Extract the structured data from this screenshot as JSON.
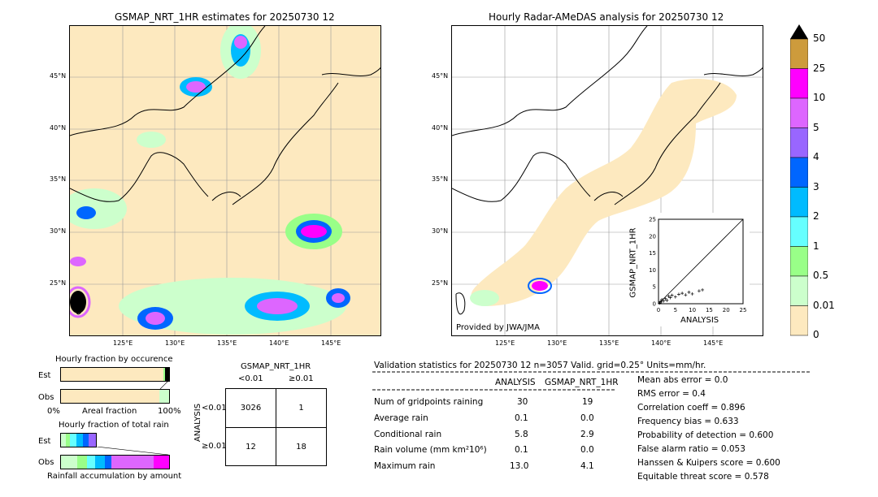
{
  "left_map": {
    "title": "GSMAP_NRT_1HR estimates for 20250730 12",
    "lat_ticks": [
      "45°N",
      "40°N",
      "35°N",
      "30°N",
      "25°N"
    ],
    "lon_ticks": [
      "125°E",
      "130°E",
      "135°E",
      "140°E",
      "145°E"
    ]
  },
  "right_map": {
    "title": "Hourly Radar-AMeDAS analysis for 20250730 12",
    "lat_ticks": [
      "45°N",
      "40°N",
      "35°N",
      "30°N",
      "25°N"
    ],
    "lon_ticks": [
      "125°E",
      "130°E",
      "135°E",
      "140°E",
      "145°E"
    ],
    "credit": "Provided by JWA/JMA"
  },
  "scatter": {
    "xlabel": "ANALYSIS",
    "ylabel": "GSMAP_NRT_1HR",
    "ticks": [
      "0",
      "5",
      "10",
      "15",
      "20",
      "25"
    ]
  },
  "colorbar": {
    "labels": [
      "50",
      "25",
      "10",
      "5",
      "4",
      "3",
      "2",
      "1",
      "0.5",
      "0.01",
      "0"
    ],
    "colors": [
      "#cd9b3c",
      "#ff00ff",
      "#dd66ff",
      "#9966ff",
      "#0066ff",
      "#00bbff",
      "#66ffff",
      "#99ff88",
      "#ccffcc",
      "#fde9bf"
    ]
  },
  "occurrence": {
    "title": "Hourly fraction by occurence",
    "rows": [
      "Est",
      "Obs"
    ],
    "xlabel_left": "0%",
    "xlabel_mid": "Areal fraction",
    "xlabel_right": "100%"
  },
  "amount": {
    "title": "Hourly fraction of total rain",
    "rows": [
      "Est",
      "Obs"
    ],
    "xlabel": "Rainfall accumulation by amount"
  },
  "contingency": {
    "title": "GSMAP_NRT_1HR",
    "col_lt": "<0.01",
    "col_ge": "≥0.01",
    "row_label": "ANALYSIS",
    "row_lt": "<0.01",
    "row_ge": "≥0.01",
    "a": "3026",
    "b": "1",
    "c": "12",
    "d": "18"
  },
  "validation": {
    "header": "Validation statistics for 20250730 12  n=3057 Valid. grid=0.25° Units=mm/hr.",
    "col1": "ANALYSIS",
    "col2": "GSMAP_NRT_1HR",
    "rows": [
      {
        "label": "Num of gridpoints raining",
        "a": "30",
        "b": "19"
      },
      {
        "label": "Average rain",
        "a": "0.1",
        "b": "0.0"
      },
      {
        "label": "Conditional rain",
        "a": "5.8",
        "b": "2.9"
      },
      {
        "label": "Rain volume (mm km²10⁶)",
        "a": "0.1",
        "b": "0.0"
      },
      {
        "label": "Maximum rain",
        "a": "13.0",
        "b": "4.1"
      }
    ],
    "scores": [
      "Mean abs error =    0.0",
      "RMS error =    0.4",
      "Correlation coeff =  0.896",
      "Frequency bias =  0.633",
      "Probability of detection =  0.600",
      "False alarm ratio =  0.053",
      "Hanssen & Kuipers score =  0.600",
      "Equitable threat score =  0.578"
    ]
  },
  "chart_data": {
    "type": "scatter",
    "title": "",
    "xlabel": "ANALYSIS",
    "ylabel": "GSMAP_NRT_1HR",
    "xlim": [
      0,
      25
    ],
    "ylim": [
      0,
      25
    ],
    "points": [
      [
        0.3,
        0.2
      ],
      [
        0.5,
        0.6
      ],
      [
        0.8,
        0.5
      ],
      [
        1.0,
        1.2
      ],
      [
        1.5,
        0.8
      ],
      [
        2.0,
        1.5
      ],
      [
        2.5,
        1.0
      ],
      [
        3.0,
        2.2
      ],
      [
        3.5,
        1.8
      ],
      [
        4.0,
        2.5
      ],
      [
        5.0,
        2.0
      ],
      [
        6.0,
        2.8
      ],
      [
        7.0,
        3.1
      ],
      [
        8.0,
        2.6
      ],
      [
        9.0,
        3.4
      ],
      [
        10.0,
        2.9
      ],
      [
        12.0,
        3.8
      ],
      [
        13.0,
        4.1
      ]
    ]
  }
}
